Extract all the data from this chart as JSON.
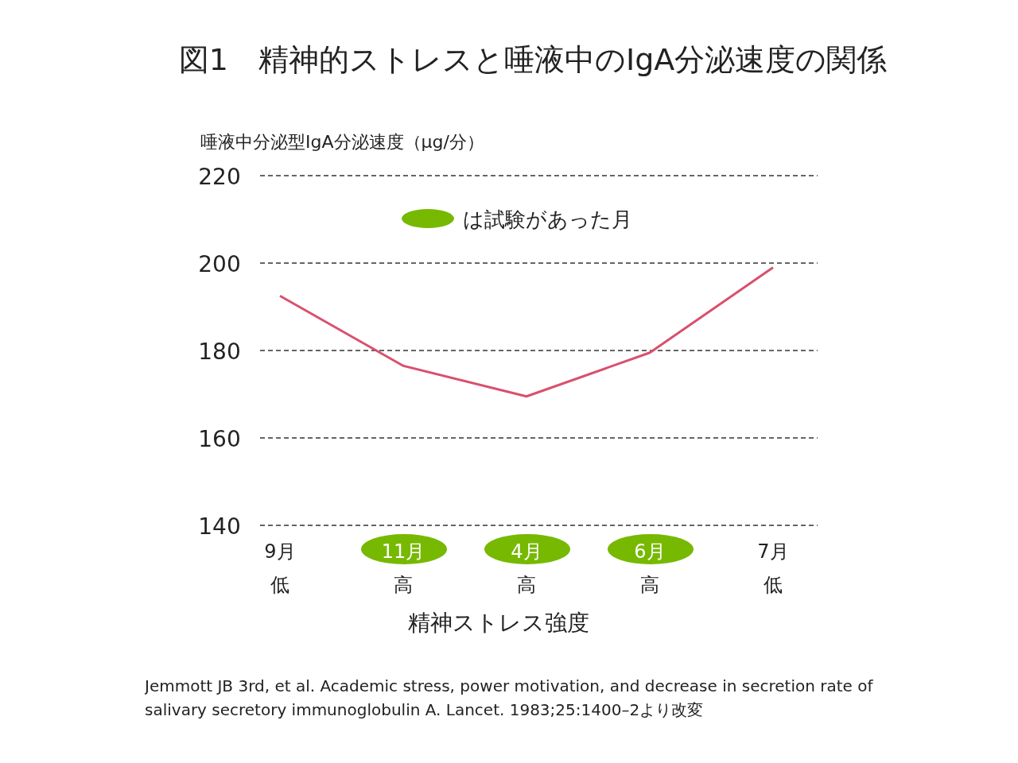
{
  "chart_data": {
    "type": "line",
    "title": "図1　精神的ストレスと唾液中のIgA分泌速度の関係",
    "ylabel": "唾液中分泌型IgA分泌速度（μg/分）",
    "xlabel": "精神ストレス強度",
    "categories": [
      "9月低",
      "11月高",
      "4月高",
      "6月高",
      "7月低"
    ],
    "series": [
      {
        "color": "#d9506e",
        "values": [
          192.5,
          176.5,
          169.5,
          179.5,
          199
        ]
      },
      {
        "type": "scatter",
        "name": "は試験があった月",
        "color": "#76b900",
        "x": [
          "11月高",
          "4月高",
          "6月高"
        ],
        "values": [
          null,
          null,
          null
        ]
      }
    ],
    "ylim": [
      140,
      220
    ],
    "yticks": [
      140,
      160,
      180,
      200,
      220
    ],
    "grid": "y",
    "legend": "top",
    "marker": "none",
    "annotations": [
      "Jemmott JB 3rd, et al. Academic stress, power motivation, and decrease in secretion rate of salivary secretory immunoglobulin A. Lancet. 1983;25:1400–2より改変"
    ]
  }
}
